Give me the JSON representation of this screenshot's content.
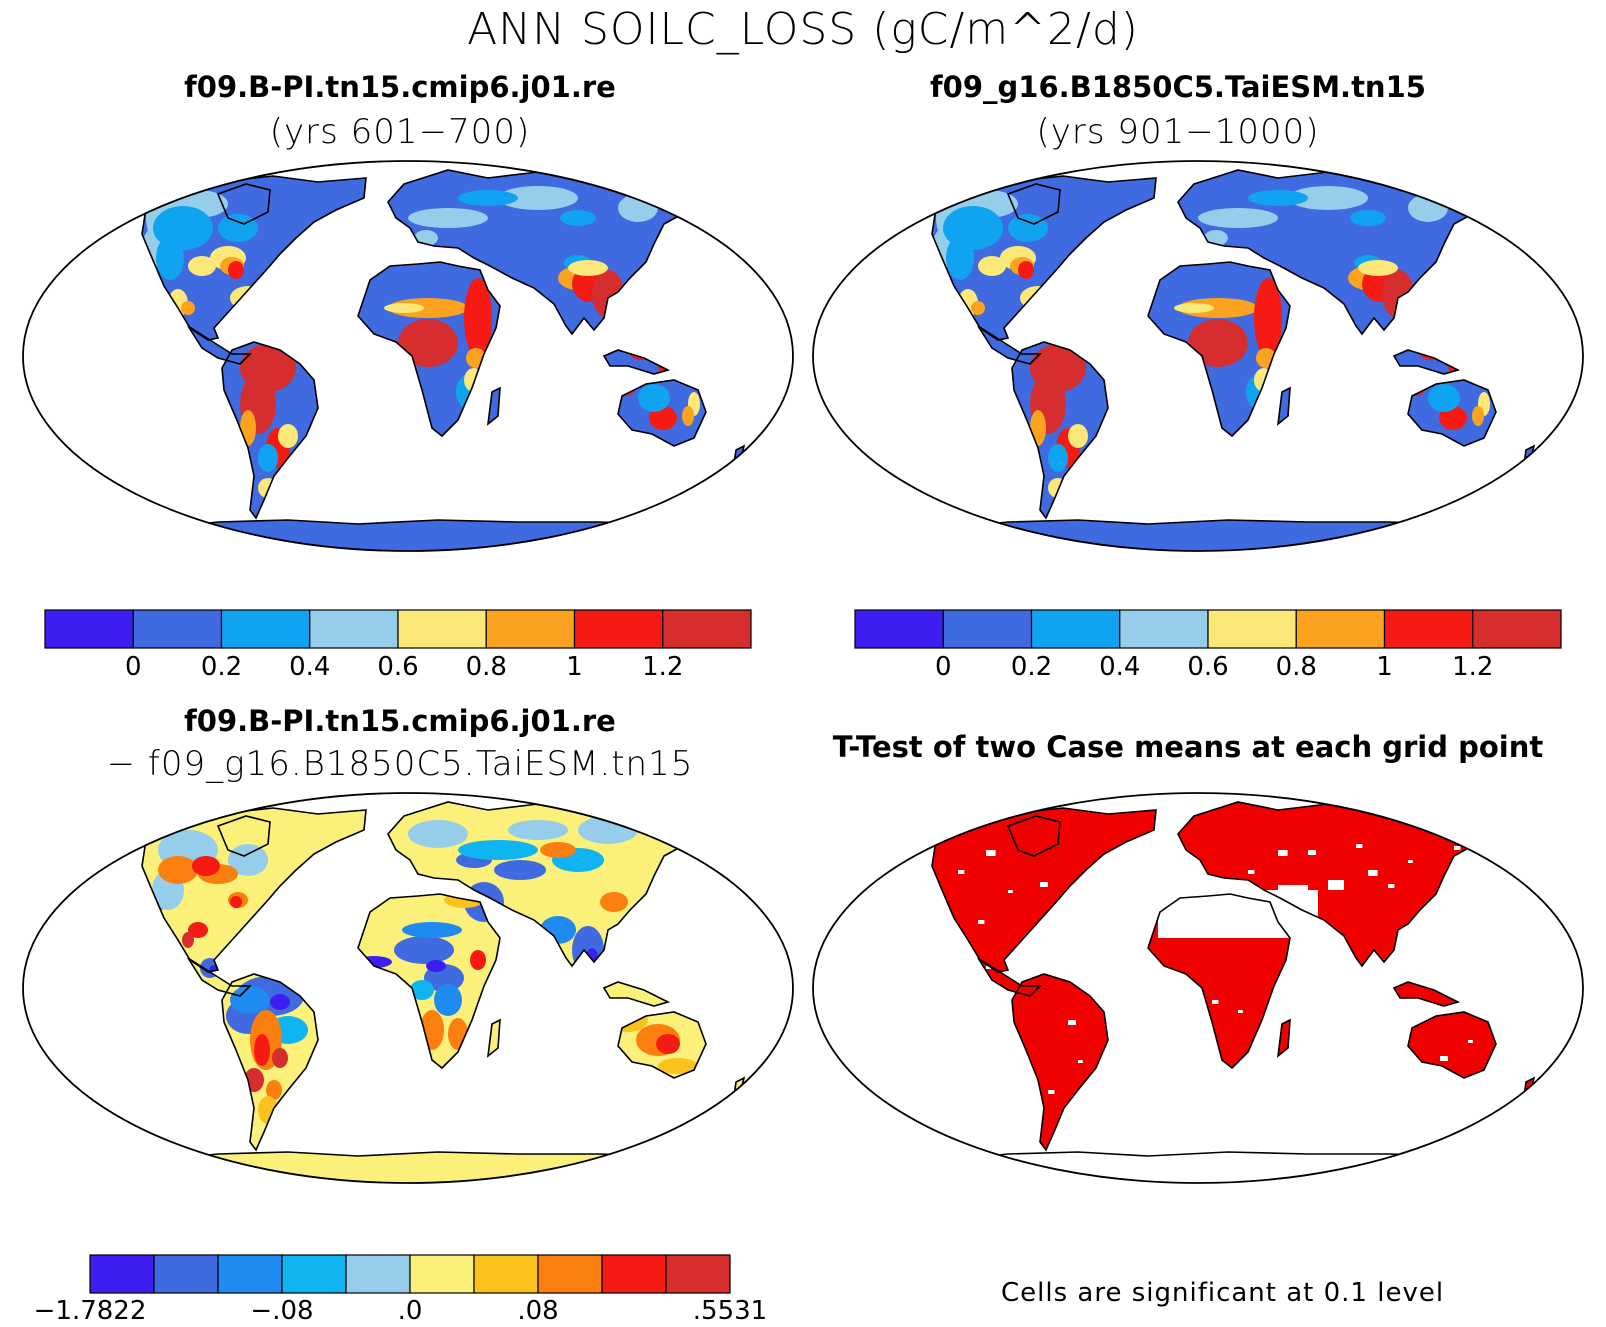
{
  "main_title": "ANN SOILC_LOSS (gC/m^2/d)",
  "panels": {
    "tl": {
      "title": "f09.B-PI.tn15.cmip6.j01.re",
      "subtitle": "(yrs 601−700)"
    },
    "tr": {
      "title": "f09_g16.B1850C5.TaiESM.tn15",
      "subtitle": "(yrs 901−1000)"
    },
    "bl": {
      "title": "f09.B-PI.tn15.cmip6.j01.re",
      "subtitle": "− f09_g16.B1850C5.TaiESM.tn15"
    },
    "br": {
      "title": "T-Test of two Case means at each grid point",
      "note": "Cells are significant at 0.1 level"
    }
  },
  "colorbars": {
    "abs": {
      "colors": [
        "#3c1ef0",
        "#3f6ae0",
        "#10a3f0",
        "#96cdea",
        "#fbe878",
        "#fba31e",
        "#f51a13",
        "#d62e2e"
      ],
      "labels": [
        "0",
        "0.2",
        "0.4",
        "0.6",
        "0.8",
        "1",
        "1.2"
      ]
    },
    "diff": {
      "colors": [
        "#3c1ef0",
        "#3f6ae0",
        "#1f8bf0",
        "#10b4f0",
        "#96cdea",
        "#fbf07a",
        "#fbc21e",
        "#fb7f0e",
        "#f51a13",
        "#d62e2e"
      ],
      "labels": [
        "−1.7822",
        "−.08",
        ".0",
        ".08",
        ".5531"
      ]
    }
  }
}
